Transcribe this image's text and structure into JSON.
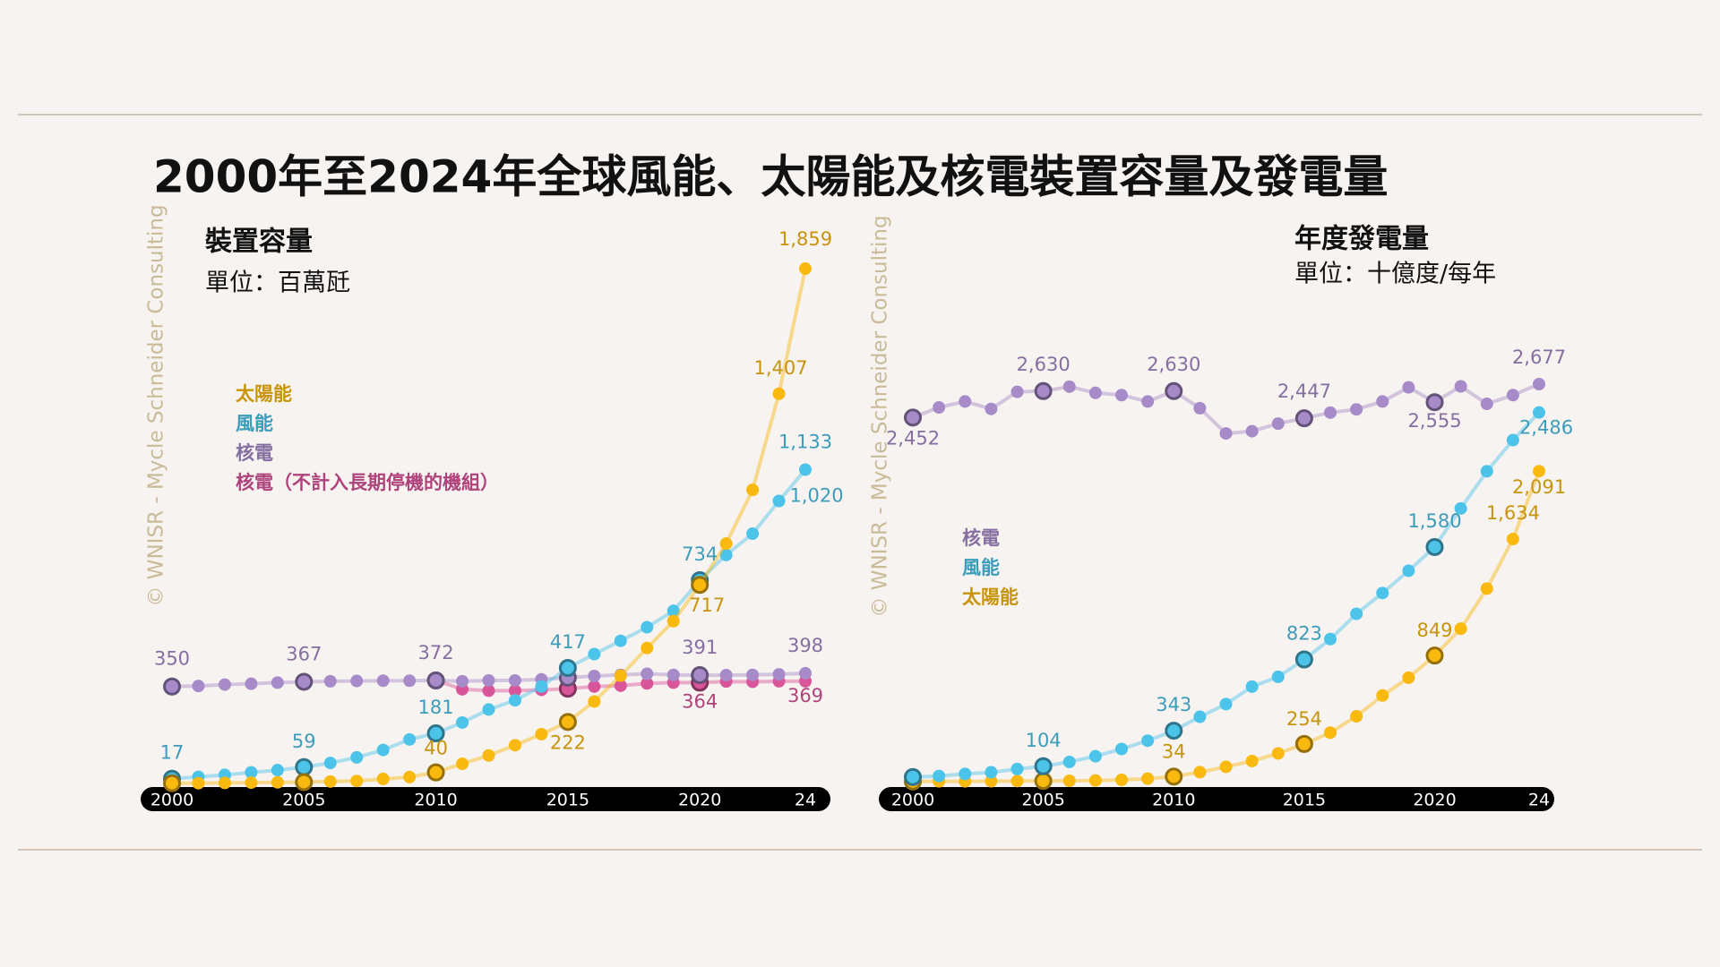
{
  "title": "2000年至2024年全球風能、太陽能及核電裝置容量及發電量",
  "chart_data": [
    {
      "type": "line",
      "title": "裝置容量",
      "subtitle": "單位：百萬瓩",
      "source": "© WNISR - Mycle Schneider Consulting",
      "x": [
        2000,
        2001,
        2002,
        2003,
        2004,
        2005,
        2006,
        2007,
        2008,
        2009,
        2010,
        2011,
        2012,
        2013,
        2014,
        2015,
        2016,
        2017,
        2018,
        2019,
        2020,
        2021,
        2022,
        2023,
        2024
      ],
      "xlim": [
        2000,
        2024
      ],
      "xticks": [
        2000,
        2005,
        2010,
        2015,
        2020,
        {
          "value": 2024,
          "label": "24"
        }
      ],
      "series": [
        {
          "name": "太陽能",
          "color": "#f9b90f",
          "values": [
            1,
            1,
            2,
            3,
            4,
            5,
            7,
            9,
            16,
            23,
            40,
            71,
            101,
            138,
            178,
            222,
            296,
            389,
            489,
            586,
            717,
            866,
            1060,
            1407,
            1859
          ],
          "value_labels": [
            null,
            null,
            null,
            null,
            null,
            null,
            null,
            null,
            null,
            null,
            "40",
            null,
            null,
            null,
            null,
            "222",
            null,
            null,
            null,
            null,
            "717",
            null,
            null,
            "1,407",
            "1,859"
          ]
        },
        {
          "name": "風能",
          "color": "#4cc3e8",
          "values": [
            17,
            24,
            31,
            40,
            48,
            59,
            74,
            94,
            121,
            159,
            181,
            220,
            267,
            300,
            350,
            417,
            467,
            515,
            564,
            623,
            734,
            825,
            902,
            1020,
            1133
          ],
          "value_labels": [
            "17",
            null,
            null,
            null,
            null,
            "59",
            null,
            null,
            null,
            null,
            "181",
            null,
            null,
            null,
            null,
            "417",
            null,
            null,
            null,
            null,
            "734",
            null,
            null,
            "1,020",
            "1,133"
          ]
        },
        {
          "name": "核電",
          "color": "#a68bc8",
          "values": [
            350,
            352,
            357,
            360,
            364,
            367,
            369,
            370,
            371,
            371,
            372,
            369,
            372,
            372,
            376,
            382,
            388,
            392,
            396,
            392,
            391,
            391,
            392,
            394,
            398
          ],
          "value_labels": [
            "350",
            null,
            null,
            null,
            null,
            "367",
            null,
            null,
            null,
            null,
            "372",
            null,
            null,
            null,
            null,
            null,
            null,
            null,
            null,
            null,
            "391",
            null,
            null,
            null,
            "398"
          ]
        },
        {
          "name": "核電（不計入長期停機的機組）",
          "color": "#d9559a",
          "values": [
            null,
            null,
            null,
            null,
            null,
            null,
            null,
            null,
            null,
            null,
            372,
            340,
            335,
            335,
            338,
            342,
            350,
            353,
            361,
            364,
            364,
            368,
            367,
            369,
            369
          ],
          "value_labels": [
            null,
            null,
            null,
            null,
            null,
            null,
            null,
            null,
            null,
            null,
            null,
            null,
            null,
            null,
            null,
            null,
            null,
            null,
            null,
            null,
            "364",
            null,
            null,
            null,
            "369"
          ]
        }
      ]
    },
    {
      "type": "line",
      "title": "年度發電量",
      "subtitle": "單位：十億度/每年",
      "source": "© WNISR - Mycle Schneider Consulting",
      "x": [
        2000,
        2001,
        2002,
        2003,
        2004,
        2005,
        2006,
        2007,
        2008,
        2009,
        2010,
        2011,
        2012,
        2013,
        2014,
        2015,
        2016,
        2017,
        2018,
        2019,
        2020,
        2021,
        2022,
        2023,
        2024
      ],
      "xlim": [
        2000,
        2024
      ],
      "xticks": [
        2000,
        2005,
        2010,
        2015,
        2020,
        {
          "value": 2024,
          "label": "24"
        }
      ],
      "series": [
        {
          "name": "核電",
          "color": "#a68bc8",
          "values": [
            2452,
            2520,
            2560,
            2510,
            2625,
            2630,
            2660,
            2618,
            2603,
            2560,
            2630,
            2515,
            2345,
            2360,
            2411,
            2447,
            2485,
            2507,
            2560,
            2655,
            2555,
            2662,
            2544,
            2603,
            2677
          ],
          "value_labels": [
            "2,452",
            null,
            null,
            null,
            null,
            "2,630",
            null,
            null,
            null,
            null,
            "2,630",
            null,
            null,
            null,
            null,
            "2,447",
            null,
            null,
            null,
            null,
            "2,555",
            null,
            null,
            null,
            "2,677"
          ]
        },
        {
          "name": "風能",
          "color": "#4cc3e8",
          "values": [
            31,
            38,
            52,
            63,
            85,
            104,
            133,
            171,
            220,
            276,
            343,
            437,
            522,
            640,
            706,
            823,
            960,
            1130,
            1270,
            1420,
            1580,
            1840,
            2090,
            2300,
            2486
          ],
          "value_labels": [
            null,
            null,
            null,
            null,
            null,
            "104",
            null,
            null,
            null,
            null,
            "343",
            null,
            null,
            null,
            null,
            "823",
            null,
            null,
            null,
            null,
            "1,580",
            null,
            null,
            null,
            "2,486"
          ]
        },
        {
          "name": "太陽能",
          "color": "#f9b90f",
          "values": [
            1,
            2,
            2,
            3,
            4,
            5,
            6,
            8,
            12,
            20,
            34,
            64,
            100,
            139,
            190,
            254,
            330,
            440,
            580,
            700,
            849,
            1030,
            1300,
            1634,
            2091
          ],
          "value_labels": [
            null,
            null,
            null,
            null,
            null,
            null,
            null,
            null,
            null,
            null,
            "34",
            null,
            null,
            null,
            null,
            "254",
            null,
            null,
            null,
            null,
            "849",
            null,
            null,
            "1,634",
            "2,091"
          ]
        }
      ]
    }
  ]
}
